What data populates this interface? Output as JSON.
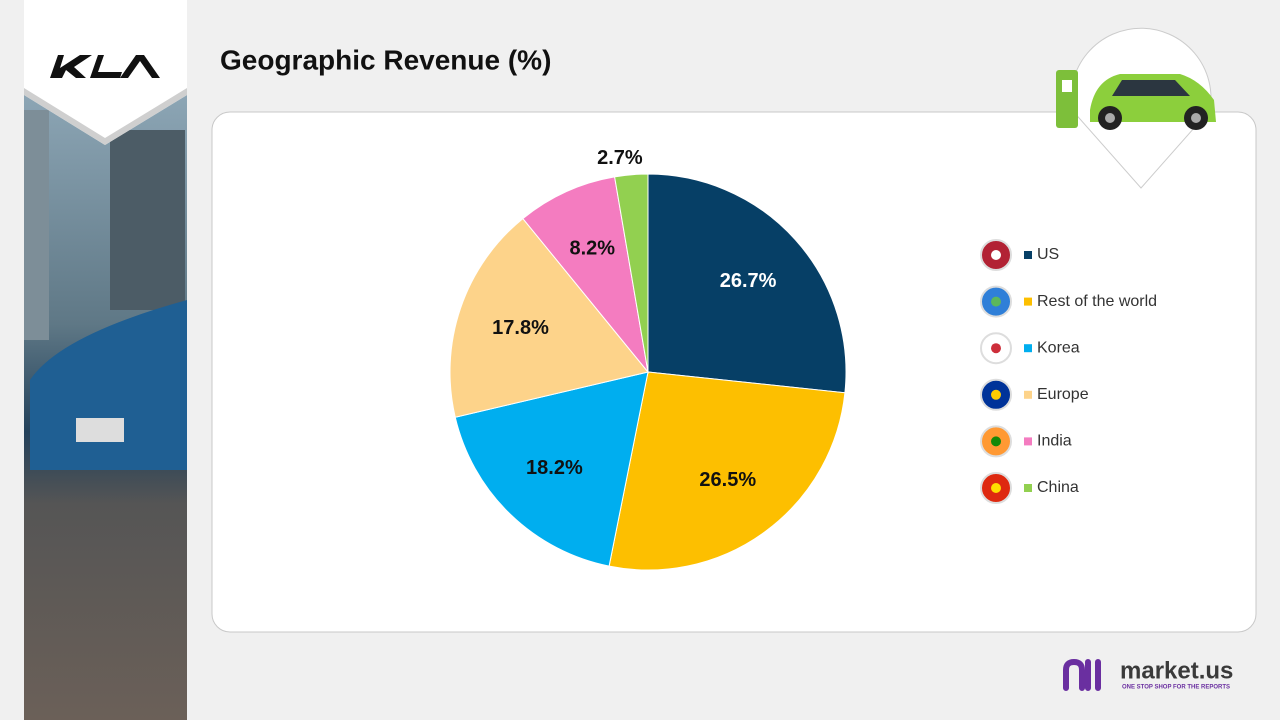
{
  "chart_data": {
    "type": "pie",
    "title": "Geographic Revenue (%)",
    "categories": [
      "US",
      "Rest of the world",
      "Korea",
      "Europe",
      "India",
      "China"
    ],
    "values": [
      26.7,
      26.5,
      18.2,
      17.8,
      8.2,
      2.7
    ],
    "value_labels": [
      "26.7%",
      "26.5%",
      "18.2%",
      "17.8%",
      "8.2%",
      "2.7%"
    ],
    "colors": [
      "#063f66",
      "#fdbf00",
      "#00aeef",
      "#fdd38a",
      "#f47cc0",
      "#92d050"
    ],
    "label_colors": [
      "#ffffff",
      "#111111",
      "#111111",
      "#111111",
      "#111111",
      "#111111"
    ],
    "legend": "right"
  },
  "brand": {
    "name": "market.us",
    "tagline": "ONE STOP SHOP FOR THE REPORTS"
  }
}
